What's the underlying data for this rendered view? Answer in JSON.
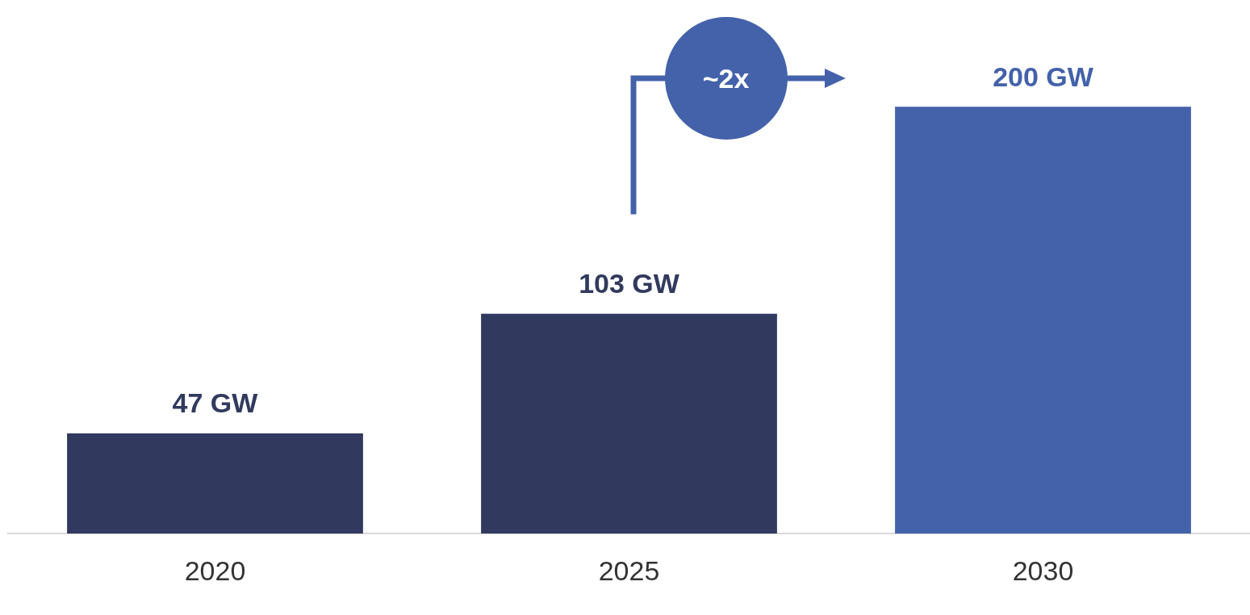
{
  "chart_data": {
    "type": "bar",
    "categories": [
      "2020",
      "2025",
      "2030"
    ],
    "values": [
      47,
      103,
      200
    ],
    "colors": [
      "#313a5e",
      "#313a5e",
      "#4462aa"
    ],
    "value_labels": [
      "47 GW",
      "103 GW",
      "200 GW"
    ],
    "annotations": [
      "~2x"
    ],
    "grid": false,
    "legend": false,
    "tick_labels": "x"
  }
}
